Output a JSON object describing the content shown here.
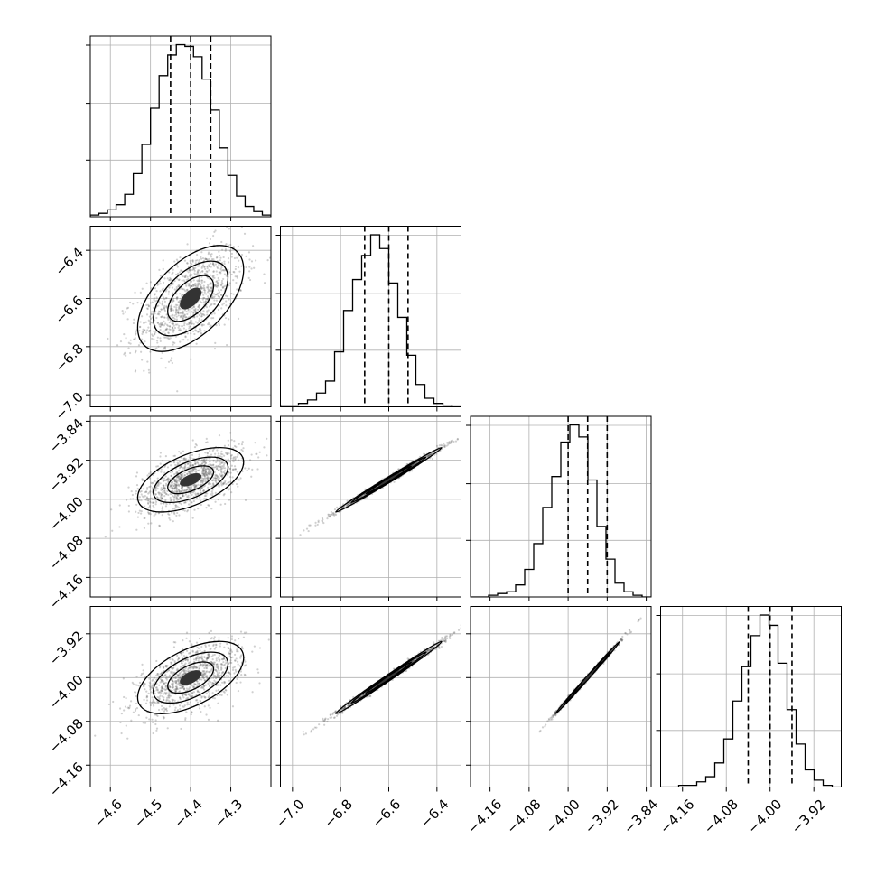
{
  "chart_data": {
    "type": "corner",
    "grid": true,
    "colors": {
      "line": "#000000",
      "grid": "#b0b0b0",
      "points": "#555555"
    },
    "quantiles_shown": [
      0.16,
      0.5,
      0.84
    ],
    "params": [
      {
        "center": -4.4,
        "std": 0.06,
        "lim": [
          -4.65,
          -4.2
        ],
        "ticks": [
          -4.6,
          -4.5,
          -4.4,
          -4.3
        ],
        "tick_labels": [
          "−4.6",
          "−4.5",
          "−4.4",
          "−4.3"
        ],
        "quantiles": [
          -4.45,
          -4.4,
          -4.35
        ]
      },
      {
        "center": -6.6,
        "std": 0.1,
        "lim": [
          -7.05,
          -6.3
        ],
        "ticks": [
          -7.0,
          -6.8,
          -6.6,
          -6.4
        ],
        "tick_labels": [
          "−7.0",
          "−6.8",
          "−6.6",
          "−6.4"
        ],
        "quantiles": [
          -6.7,
          -6.6,
          -6.52
        ]
      },
      {
        "center": -3.96,
        "std": 0.03,
        "lim": [
          -4.2,
          -3.83
        ],
        "ticks": [
          -4.16,
          -4.08,
          -4.0,
          -3.92,
          -3.84
        ],
        "tick_labels": [
          "−4.16",
          "−4.08",
          "−4.00",
          "−3.92",
          "−3.84"
        ],
        "quantiles": [
          -4.0,
          -3.96,
          -3.92
        ]
      },
      {
        "center": -4.0,
        "std": 0.03,
        "lim": [
          -4.2,
          -3.87
        ],
        "ticks": [
          -4.16,
          -4.08,
          -4.0,
          -3.92
        ],
        "tick_labels": [
          "−4.16",
          "−4.08",
          "−4.00",
          "−3.92"
        ],
        "quantiles": [
          -4.04,
          -4.0,
          -3.96
        ]
      }
    ],
    "correlations": [
      [
        1.0,
        0.55,
        0.55,
        0.55
      ],
      [
        0.55,
        1.0,
        0.995,
        0.995
      ],
      [
        0.55,
        0.995,
        1.0,
        0.998
      ],
      [
        0.55,
        0.995,
        0.998,
        1.0
      ]
    ],
    "histograms": [
      [
        0.01,
        0.02,
        0.04,
        0.07,
        0.13,
        0.25,
        0.42,
        0.63,
        0.82,
        0.94,
        1.0,
        0.99,
        0.93,
        0.8,
        0.62,
        0.4,
        0.24,
        0.12,
        0.06,
        0.03,
        0.01
      ],
      [
        0.01,
        0.01,
        0.02,
        0.04,
        0.08,
        0.15,
        0.32,
        0.56,
        0.74,
        0.88,
        1.0,
        0.92,
        0.72,
        0.52,
        0.3,
        0.13,
        0.05,
        0.02,
        0.01,
        0.0
      ],
      [
        0.0,
        0.0,
        0.01,
        0.02,
        0.03,
        0.07,
        0.16,
        0.31,
        0.52,
        0.7,
        0.9,
        1.0,
        0.93,
        0.68,
        0.41,
        0.22,
        0.08,
        0.03,
        0.01,
        0.0
      ],
      [
        0.0,
        0.0,
        0.01,
        0.01,
        0.03,
        0.06,
        0.14,
        0.28,
        0.5,
        0.7,
        0.88,
        1.0,
        0.94,
        0.72,
        0.45,
        0.25,
        0.1,
        0.04,
        0.01,
        0.0
      ]
    ]
  }
}
